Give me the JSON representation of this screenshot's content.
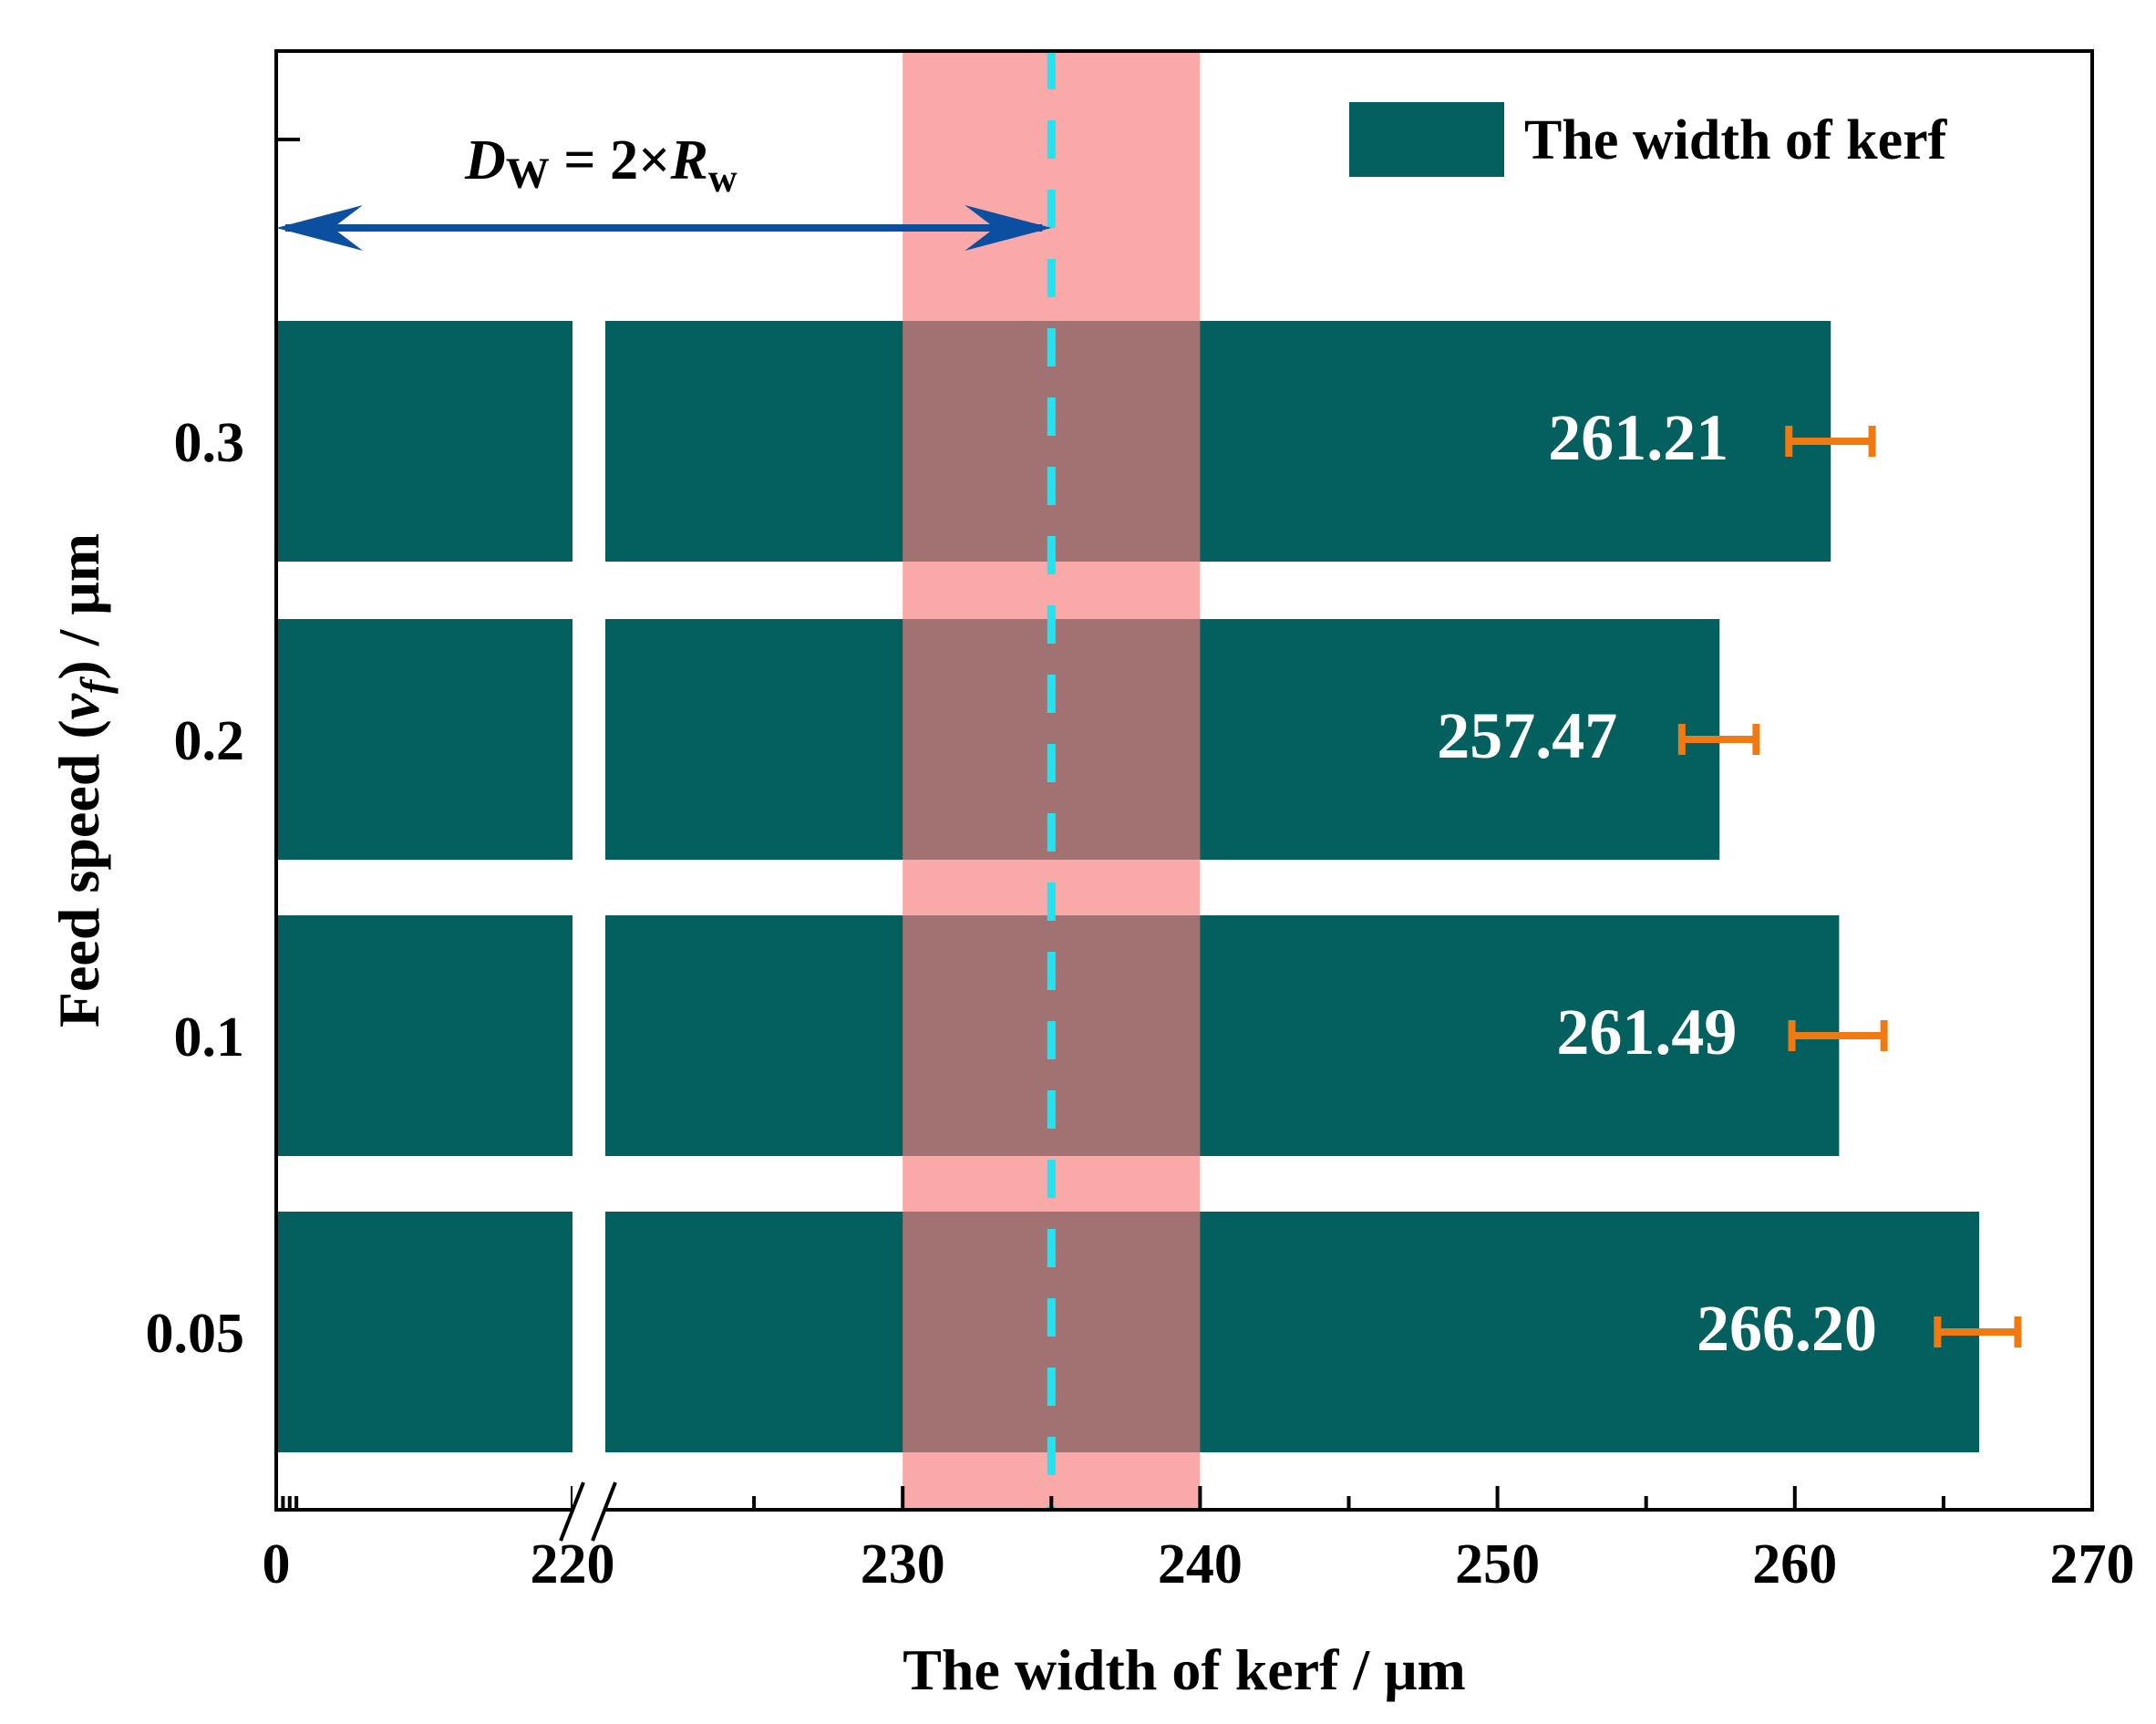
{
  "chart_data": {
    "type": "bar",
    "orientation": "horizontal",
    "xlabel": "The width of kerf / μm",
    "ylabel": {
      "prefix": "Feed speed (",
      "var": "v",
      "sub": "f",
      "suffix": ") / μm"
    },
    "categories": [
      "0.05",
      "0.1",
      "0.2",
      "0.3"
    ],
    "series": [
      {
        "name": "The width of kerf",
        "values": [
          266.2,
          261.49,
          257.47,
          261.21
        ],
        "value_labels": [
          "266.20",
          "261.49",
          "257.47",
          "261.21"
        ],
        "error_low": [
          264.8,
          259.9,
          256.2,
          259.8
        ],
        "error_high": [
          267.5,
          263.0,
          258.7,
          262.6
        ]
      }
    ],
    "x_axis": {
      "broken": true,
      "segment1": [
        0,
        220
      ],
      "segment2": [
        220,
        270
      ],
      "tick_labels": [
        "0",
        "220",
        "230",
        "240",
        "250",
        "260",
        "270"
      ],
      "tick_values": [
        0,
        220,
        230,
        240,
        250,
        260,
        270
      ],
      "minor_tick_values": [
        5,
        10,
        15,
        225,
        235,
        245,
        255,
        265
      ]
    },
    "highlight_band": {
      "from": 230,
      "to": 240,
      "color": "#f77b7b"
    },
    "reference_line": {
      "value": 235,
      "style": "dashed",
      "color": "#22e4f0"
    },
    "annotation": {
      "text_parts": [
        "D",
        "W",
        " = 2×",
        "R",
        "w"
      ],
      "arrow_from": 0,
      "arrow_to": 235
    },
    "legend": {
      "label": "The width of kerf",
      "position": "top-right"
    },
    "colors": {
      "bar": "#03605f",
      "error_bar": "#f07a12",
      "arrow": "#0b4fa0",
      "value_label": "#ffffff"
    }
  }
}
